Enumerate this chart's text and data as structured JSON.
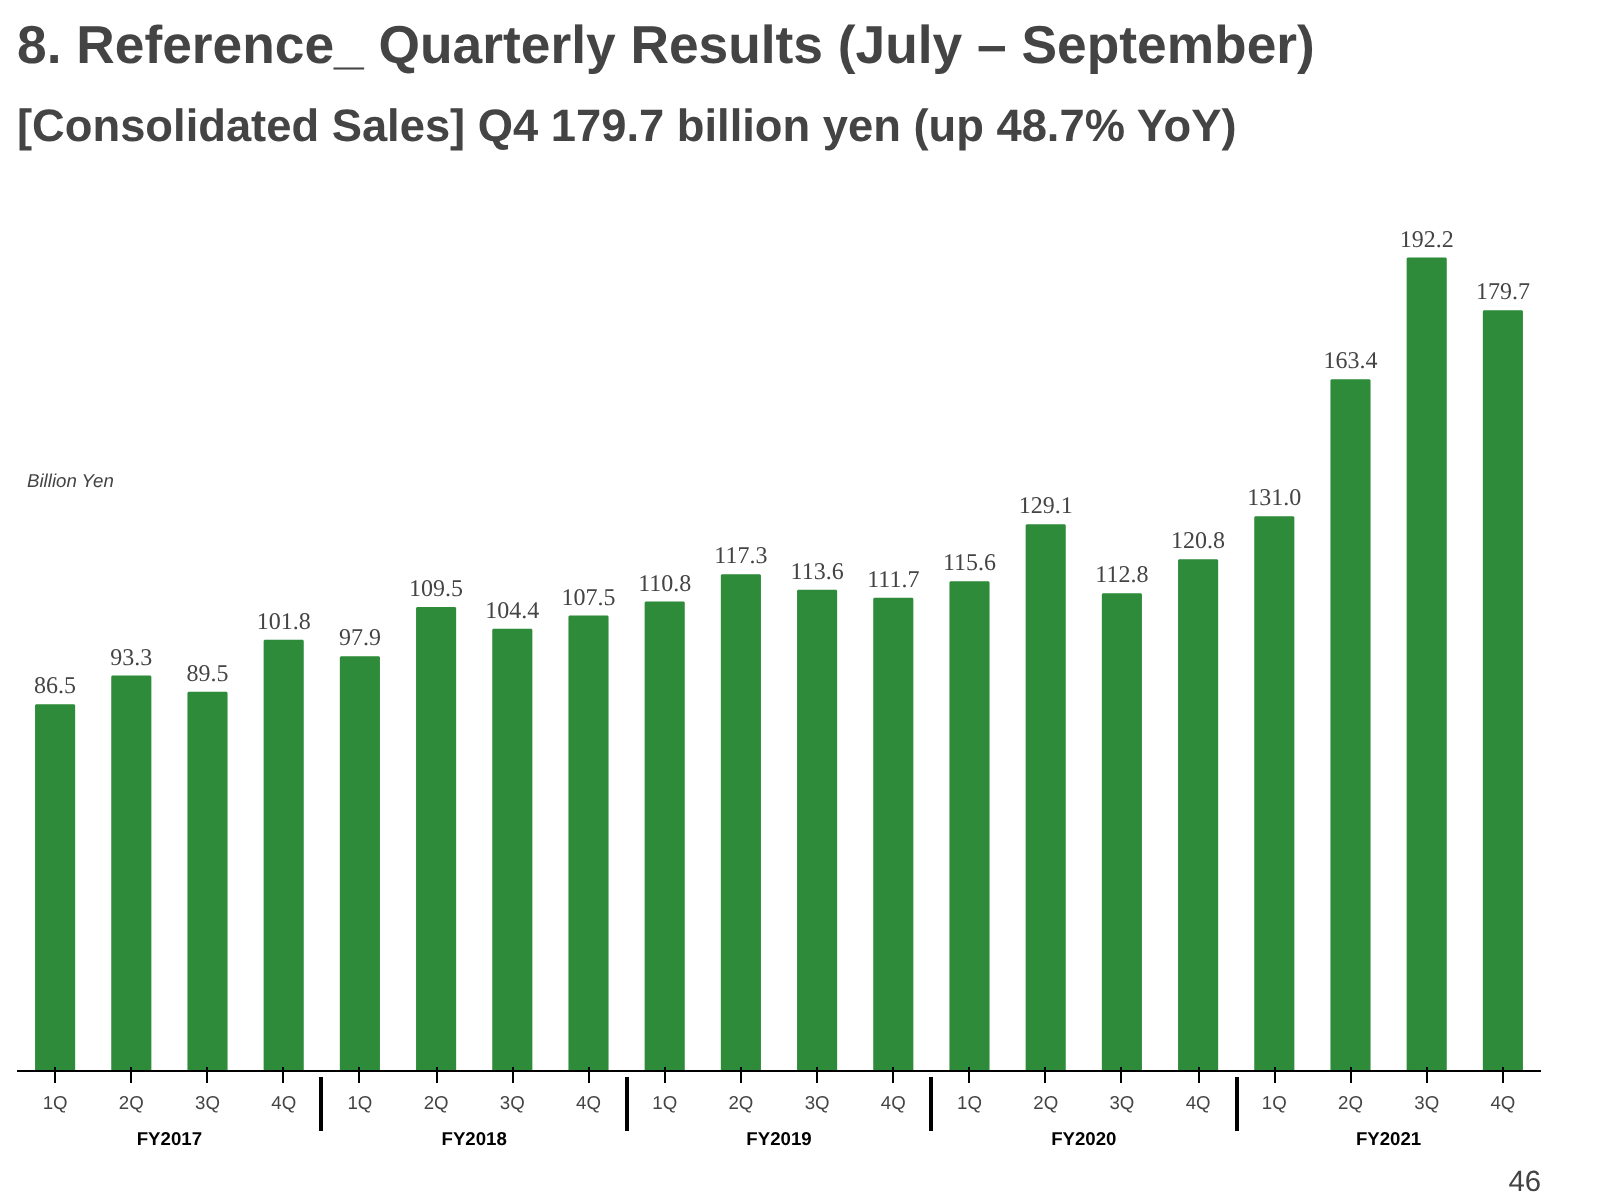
{
  "chart_data": {
    "type": "bar",
    "title": "8. Reference_ Quarterly Results (July – September)",
    "subtitle": "[Consolidated Sales]  Q4 179.7 billion yen (up 48.7% YoY)",
    "categories": [
      "1Q",
      "2Q",
      "3Q",
      "4Q",
      "1Q",
      "2Q",
      "3Q",
      "4Q",
      "1Q",
      "2Q",
      "3Q",
      "4Q",
      "1Q",
      "2Q",
      "3Q",
      "4Q",
      "1Q",
      "2Q",
      "3Q",
      "4Q"
    ],
    "values": [
      86.5,
      93.3,
      89.5,
      101.8,
      97.9,
      109.5,
      104.4,
      107.5,
      110.8,
      117.3,
      113.6,
      111.7,
      115.6,
      129.1,
      112.8,
      120.8,
      131.0,
      163.4,
      192.2,
      179.7
    ],
    "color": "#2e8b3a",
    "value_labels": [
      "86.5",
      "93.3",
      "89.5",
      "101.8",
      "97.9",
      "109.5",
      "104.4",
      "107.5",
      "110.8",
      "117.3",
      "113.6",
      "111.7",
      "115.6",
      "129.1",
      "112.8",
      "120.8",
      "131.0",
      "163.4",
      "192.2",
      "179.7"
    ],
    "grid": false,
    "annotations": [
      "Billion Yen",
      "FY2017",
      "FY2018",
      "FY2019",
      "FY2020",
      "FY2021",
      "46"
    ]
  }
}
